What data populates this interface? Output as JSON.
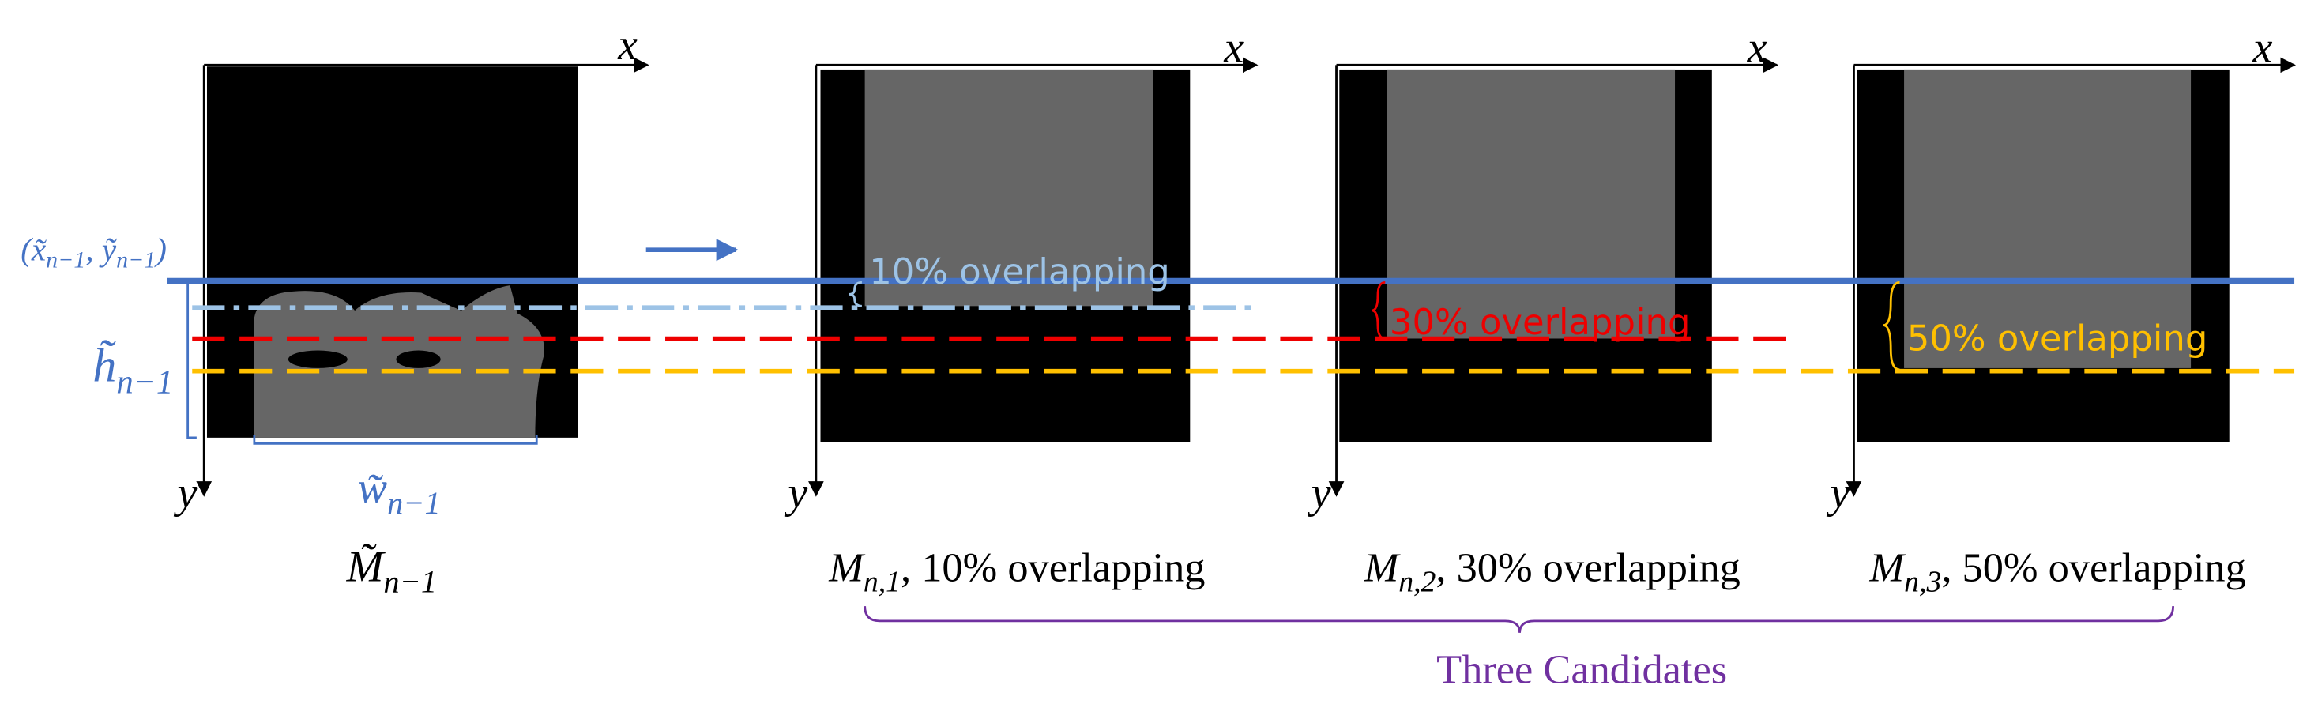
{
  "reference": {
    "x_axis": "x",
    "y_axis": "y",
    "symbol": "M̃",
    "subscript": "n−1",
    "point_parts": [
      "(x̃",
      "n−1",
      ", ỹ",
      "n−1",
      ")"
    ],
    "height": {
      "symbol": "h̃",
      "subscript": "n−1"
    },
    "width": {
      "symbol": "w̃",
      "subscript": "n−1"
    }
  },
  "candidates": [
    {
      "x_axis": "x",
      "y_axis": "y",
      "symbol": "M",
      "subscript": "n,1",
      "caption": ", 10% overlapping",
      "overlap_label": "10% overlapping"
    },
    {
      "x_axis": "x",
      "y_axis": "y",
      "symbol": "M",
      "subscript": "n,2",
      "caption": ", 30% overlapping",
      "overlap_label": "30% overlapping"
    },
    {
      "x_axis": "x",
      "y_axis": "y",
      "symbol": "M",
      "subscript": "n,3",
      "caption": ", 50% overlapping",
      "overlap_label": "50% overlapping"
    }
  ],
  "group_label": "Three Candidates"
}
